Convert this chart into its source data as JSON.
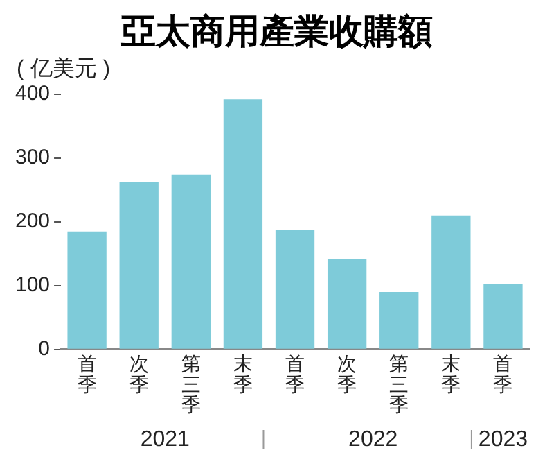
{
  "chart_data": {
    "type": "bar",
    "title": "亞太商用產業收購額",
    "ylabel": "( 亿美元 )",
    "categories": [
      "首季",
      "次季",
      "第三季",
      "末季",
      "首季",
      "次季",
      "第三季",
      "末季",
      "首季"
    ],
    "values": [
      185,
      262,
      274,
      392,
      187,
      142,
      90,
      210,
      103
    ],
    "color": "#7ecbd9",
    "ylim": [
      0,
      400
    ],
    "yticks": [
      0,
      100,
      200,
      300,
      400
    ],
    "grid": false,
    "legend": false,
    "annotations": [
      "2021",
      "2022",
      "2023"
    ]
  }
}
